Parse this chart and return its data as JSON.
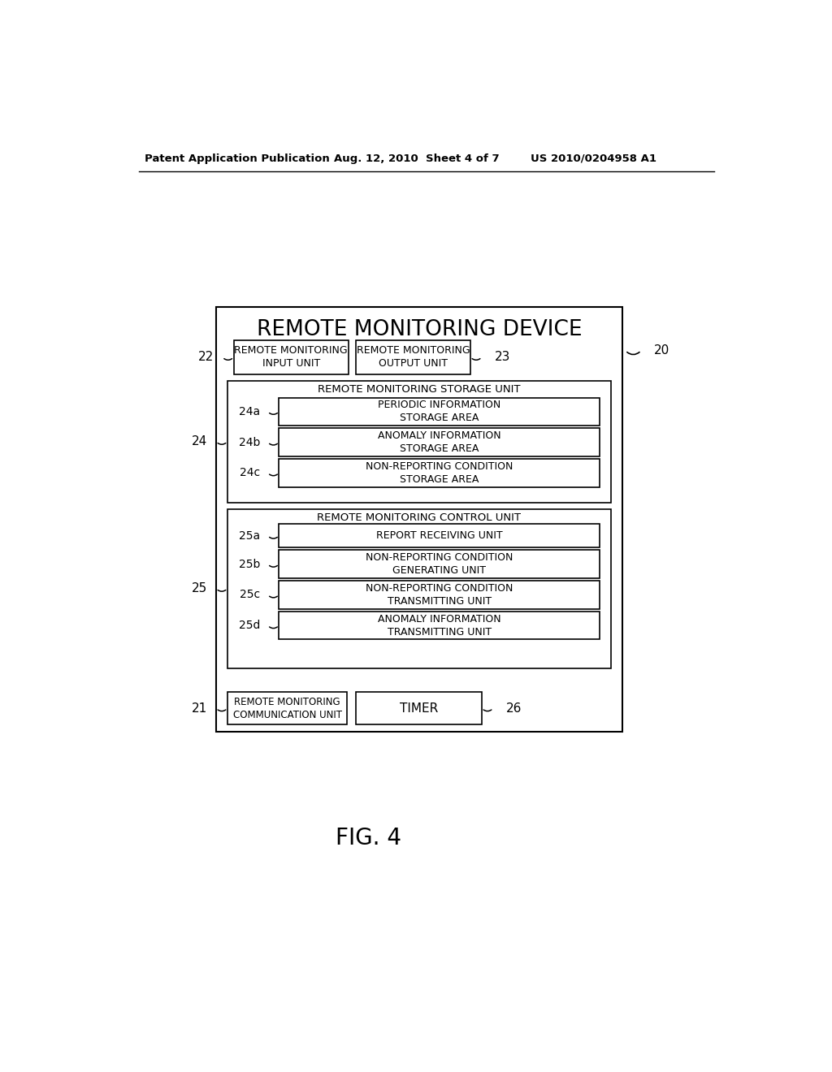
{
  "bg_color": "#ffffff",
  "header_left": "Patent Application Publication",
  "header_mid": "Aug. 12, 2010  Sheet 4 of 7",
  "header_right": "US 2010/0204958 A1",
  "fig_label": "FIG. 4",
  "main_title": "REMOTE MONITORING DEVICE",
  "boxes": {
    "input_unit": {
      "label": "REMOTE MONITORING\nINPUT UNIT",
      "ref": "22"
    },
    "output_unit": {
      "label": "REMOTE MONITORING\nOUTPUT UNIT",
      "ref": "23"
    },
    "storage_unit_title": "REMOTE MONITORING STORAGE UNIT",
    "storage_ref": "24",
    "storage_items": [
      {
        "label": "PERIODIC INFORMATION\nSTORAGE AREA",
        "ref": "24a"
      },
      {
        "label": "ANOMALY INFORMATION\nSTORAGE AREA",
        "ref": "24b"
      },
      {
        "label": "NON-REPORTING CONDITION\nSTORAGE AREA",
        "ref": "24c"
      }
    ],
    "control_unit_title": "REMOTE MONITORING CONTROL UNIT",
    "control_ref": "25",
    "control_items": [
      {
        "label": "REPORT RECEIVING UNIT",
        "ref": "25a"
      },
      {
        "label": "NON-REPORTING CONDITION\nGENERATING UNIT",
        "ref": "25b"
      },
      {
        "label": "NON-REPORTING CONDITION\nTRANSMITTING UNIT",
        "ref": "25c"
      },
      {
        "label": "ANOMALY INFORMATION\nTRANSMITTING UNIT",
        "ref": "25d"
      }
    ],
    "comm_unit": {
      "label": "REMOTE MONITORING\nCOMMUNICATION UNIT",
      "ref": "21"
    },
    "timer": {
      "label": "TIMER",
      "ref": "26"
    }
  }
}
